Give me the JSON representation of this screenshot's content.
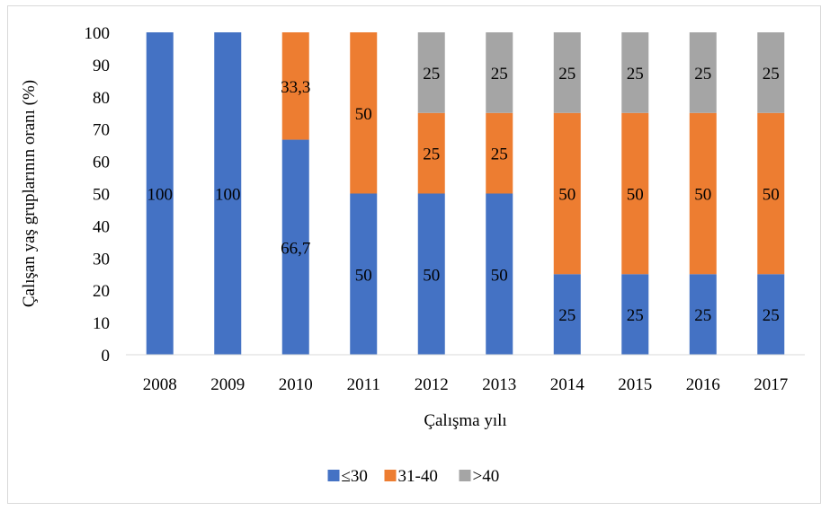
{
  "chart_data": {
    "type": "bar",
    "stacked": true,
    "percent": true,
    "title": "",
    "xlabel": "Çalışma yılı",
    "ylabel": "Çalışan yaş gruplarının oranı (%)",
    "ylim": [
      0,
      100
    ],
    "yticks": [
      0,
      10,
      20,
      30,
      40,
      50,
      60,
      70,
      80,
      90,
      100
    ],
    "categories": [
      "2008",
      "2009",
      "2010",
      "2011",
      "2012",
      "2013",
      "2014",
      "2015",
      "2016",
      "2017"
    ],
    "series": [
      {
        "name": "≤30",
        "color": "#4472c4",
        "values": [
          100,
          100,
          66.7,
          50,
          50,
          50,
          25,
          25,
          25,
          25
        ],
        "labels": [
          "100",
          "100",
          "66,7",
          "50",
          "50",
          "50",
          "25",
          "25",
          "25",
          "25"
        ]
      },
      {
        "name": "31-40",
        "color": "#ed7d31",
        "values": [
          0,
          0,
          33.3,
          50,
          25,
          25,
          50,
          50,
          50,
          50
        ],
        "labels": [
          "",
          "",
          "33,3",
          "50",
          "25",
          "25",
          "50",
          "50",
          "50",
          "50"
        ]
      },
      {
        "name": ">40",
        "color": "#a5a5a5",
        "values": [
          0,
          0,
          0,
          0,
          25,
          25,
          25,
          25,
          25,
          25
        ],
        "labels": [
          "",
          "",
          "",
          "",
          "25",
          "25",
          "25",
          "25",
          "25",
          "25"
        ]
      }
    ],
    "grid": false,
    "legend_position": "bottom"
  }
}
